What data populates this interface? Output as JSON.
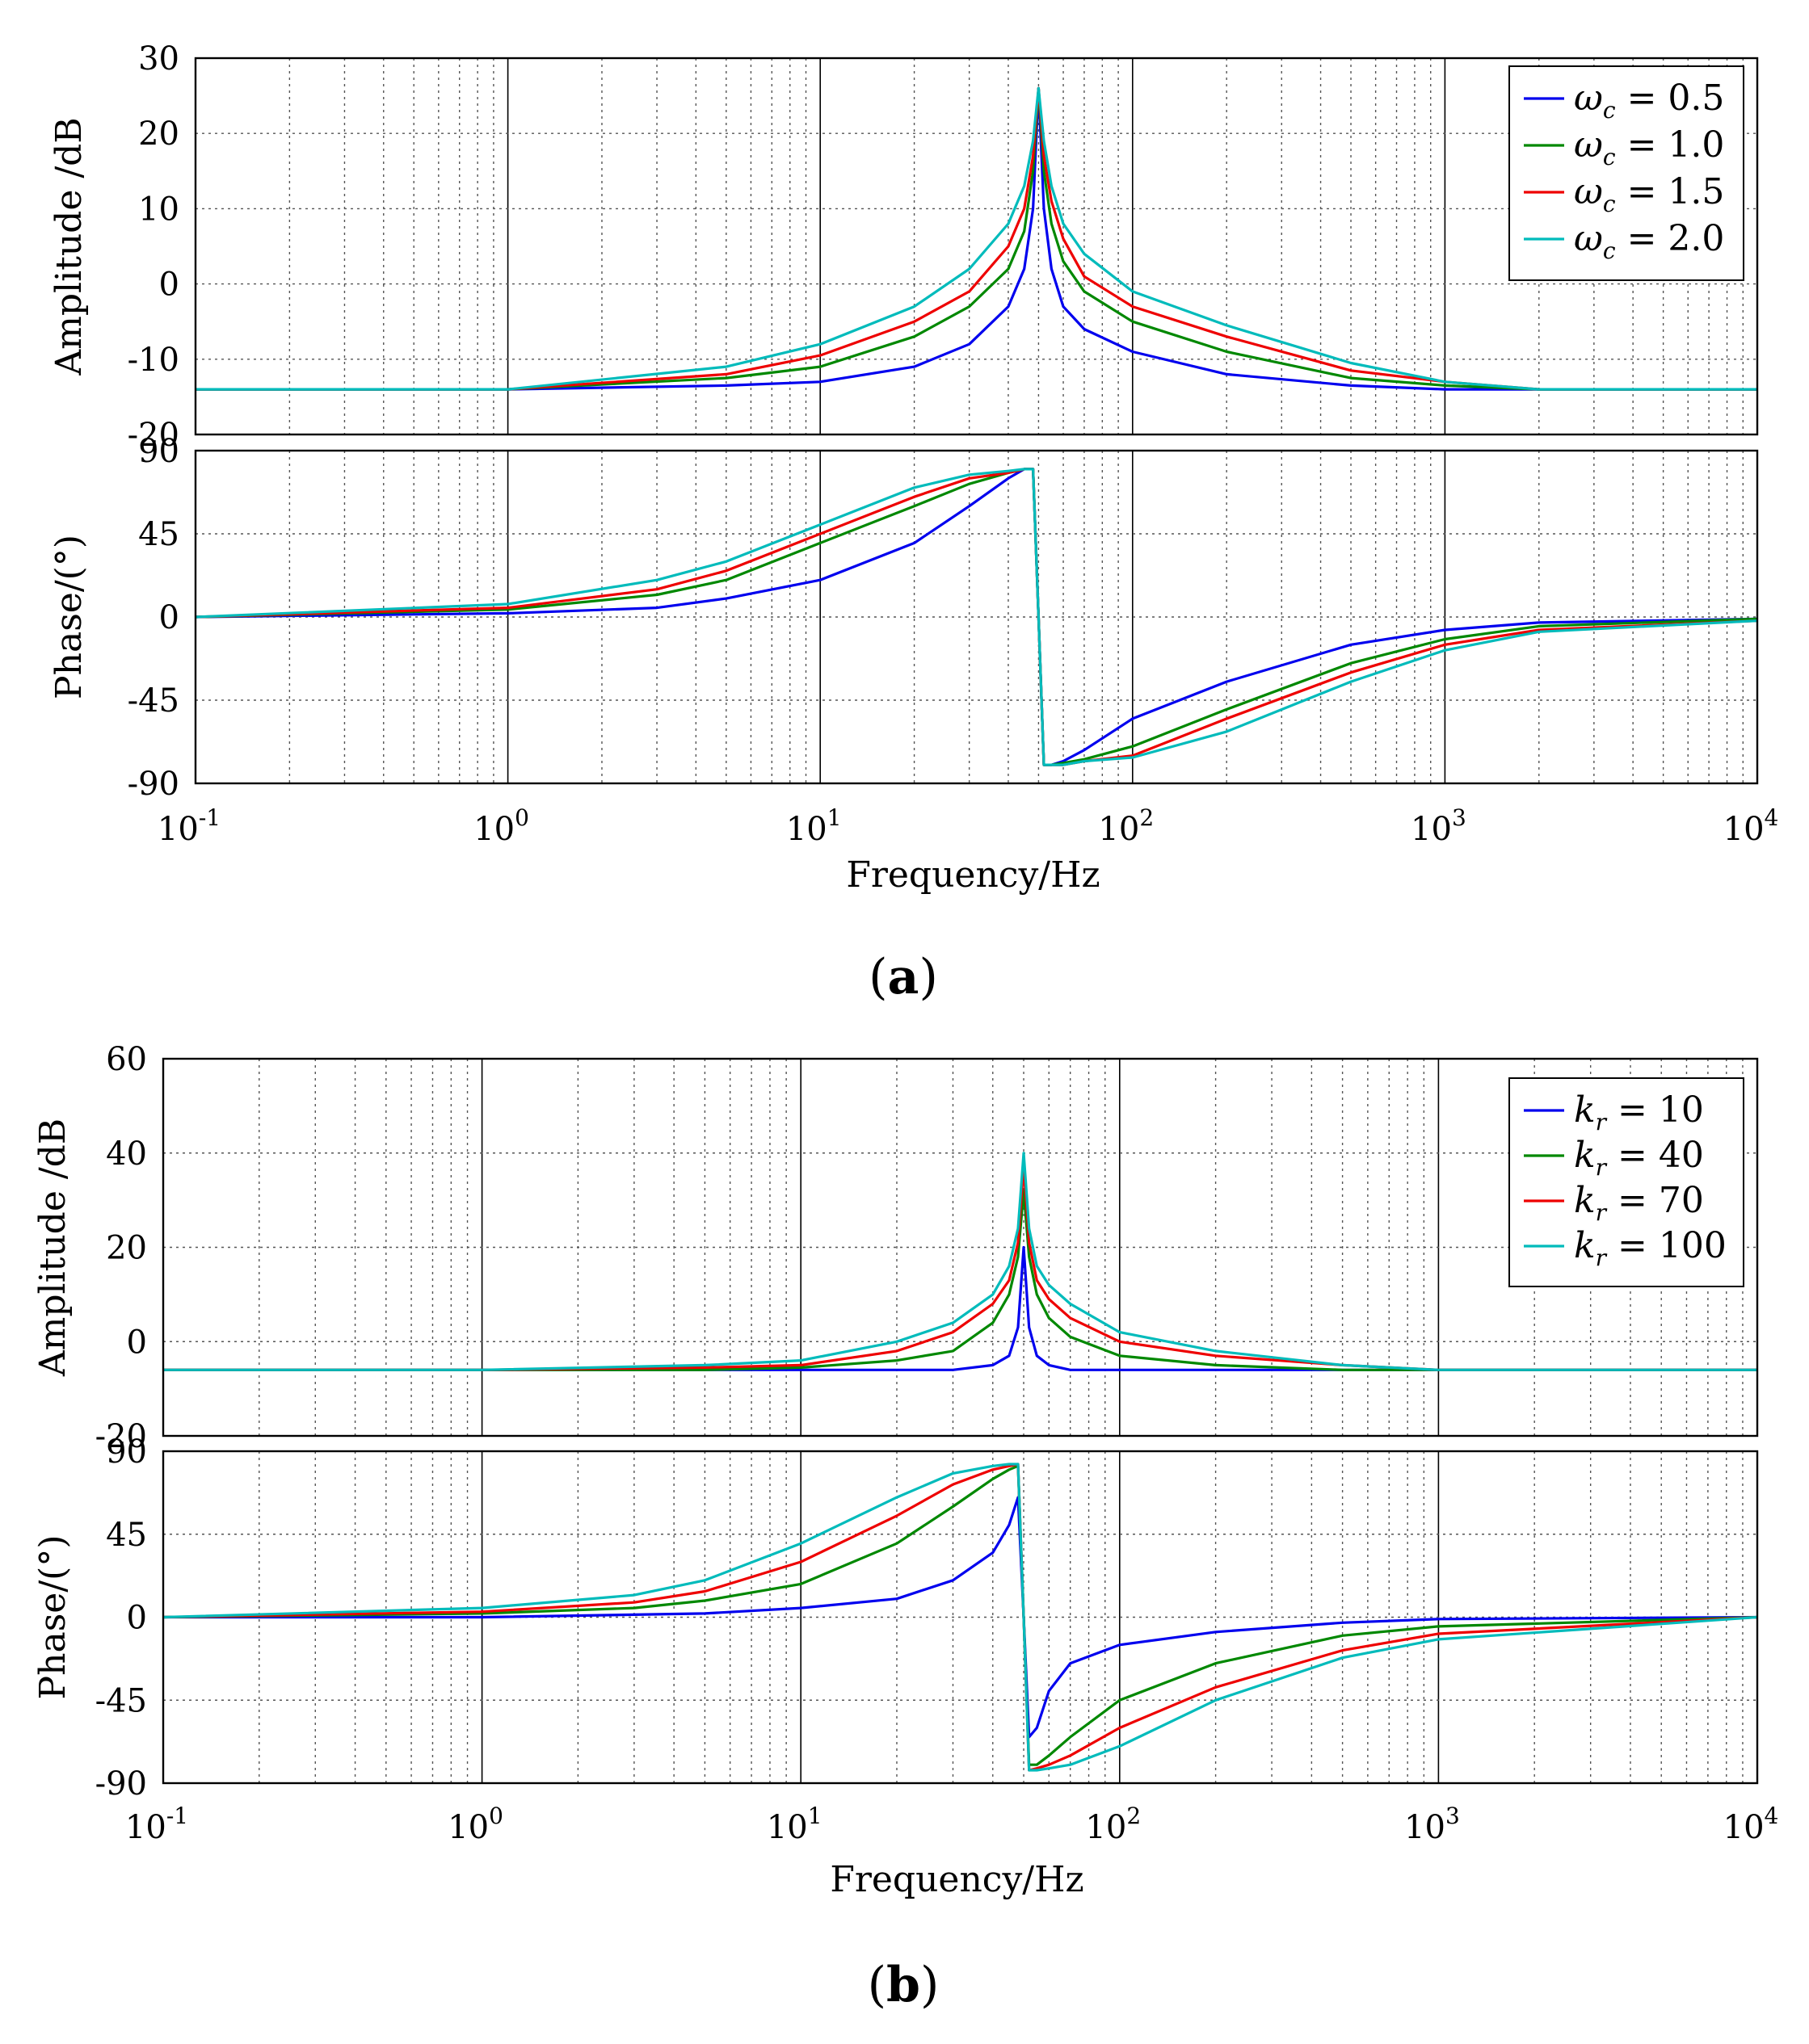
{
  "figure": {
    "panels": [
      {
        "caption_letter": "a",
        "legend_symbol": "ω",
        "legend_subscript": "c",
        "legend_values": [
          "0.5",
          "1.0",
          "1.5",
          "2.0"
        ],
        "xlabel": "Frequency/Hz"
      },
      {
        "caption_letter": "b",
        "legend_symbol": "k",
        "legend_subscript": "r",
        "legend_values": [
          "10",
          "40",
          "70",
          "100"
        ],
        "xlabel": "Frequency/Hz"
      }
    ]
  },
  "chart_data": [
    {
      "type": "line",
      "title": "",
      "panel": "a",
      "xlabel": "Frequency/Hz",
      "x_scale": "log",
      "xlim": [
        0.1,
        10000
      ],
      "x_ticks": [
        {
          "base": "10",
          "exp": "-1"
        },
        {
          "base": "10",
          "exp": "0"
        },
        {
          "base": "10",
          "exp": "1"
        },
        {
          "base": "10",
          "exp": "2"
        },
        {
          "base": "10",
          "exp": "3"
        },
        {
          "base": "10",
          "exp": "4"
        }
      ],
      "subplots": [
        {
          "ylabel": "Amplitude /dB",
          "ylim": [
            -20,
            30
          ],
          "yticks": [
            "30",
            "20",
            "10",
            "0",
            "-10",
            "-20"
          ],
          "grid": true,
          "legend": "top-right",
          "series": [
            {
              "name": "ωc = 0.5",
              "color": "#0000ee",
              "x": [
                0.1,
                1,
                5,
                10,
                20,
                30,
                40,
                45,
                48,
                50,
                52,
                55,
                60,
                70,
                100,
                200,
                500,
                1000,
                2000,
                10000
              ],
              "y": [
                -14,
                -14,
                -13.5,
                -13,
                -11,
                -8,
                -3,
                2,
                10,
                26,
                10,
                2,
                -3,
                -6,
                -9,
                -12,
                -13.5,
                -14,
                -14,
                -14
              ]
            },
            {
              "name": "ωc = 1.0",
              "color": "#008800",
              "x": [
                0.1,
                1,
                5,
                10,
                20,
                30,
                40,
                45,
                48,
                50,
                52,
                55,
                60,
                70,
                100,
                200,
                500,
                1000,
                2000,
                10000
              ],
              "y": [
                -14,
                -14,
                -12.5,
                -11,
                -7,
                -3,
                2,
                7,
                15,
                26,
                15,
                8,
                3,
                -1,
                -5,
                -9,
                -12.5,
                -13.5,
                -14,
                -14
              ]
            },
            {
              "name": "ωc = 1.5",
              "color": "#ee0000",
              "x": [
                0.1,
                1,
                5,
                10,
                20,
                30,
                40,
                45,
                48,
                50,
                52,
                55,
                60,
                70,
                100,
                200,
                500,
                1000,
                2000,
                10000
              ],
              "y": [
                -14,
                -14,
                -12,
                -9.5,
                -5,
                -1,
                5,
                10,
                17,
                26,
                17,
                11,
                6,
                1,
                -3,
                -7,
                -11.5,
                -13,
                -14,
                -14
              ]
            },
            {
              "name": "ωc = 2.0",
              "color": "#00bbbb",
              "x": [
                0.1,
                1,
                5,
                10,
                20,
                30,
                40,
                45,
                48,
                50,
                52,
                55,
                60,
                70,
                100,
                200,
                500,
                1000,
                2000,
                10000
              ],
              "y": [
                -14,
                -14,
                -11,
                -8,
                -3,
                2,
                8,
                13,
                19,
                26,
                19,
                13,
                8,
                4,
                -1,
                -5.5,
                -10.5,
                -13,
                -14,
                -14
              ]
            }
          ]
        },
        {
          "ylabel": "Phase/(°)",
          "ylim": [
            -90,
            90
          ],
          "yticks": [
            "90",
            "45",
            "0",
            "-45",
            "-90"
          ],
          "grid": true,
          "series": [
            {
              "name": "ωc = 0.5",
              "color": "#0000ee",
              "x": [
                0.1,
                1,
                3,
                5,
                10,
                20,
                30,
                40,
                45,
                48,
                50,
                52,
                55,
                60,
                70,
                100,
                200,
                500,
                1000,
                2000,
                10000
              ],
              "y": [
                0,
                2,
                5,
                10,
                20,
                40,
                60,
                75,
                80,
                80,
                0,
                -80,
                -80,
                -78,
                -72,
                -55,
                -35,
                -15,
                -7,
                -3,
                -1
              ]
            },
            {
              "name": "ωc = 1.0",
              "color": "#008800",
              "x": [
                0.1,
                1,
                3,
                5,
                10,
                20,
                30,
                40,
                45,
                48,
                50,
                52,
                55,
                60,
                70,
                100,
                200,
                500,
                1000,
                2000,
                10000
              ],
              "y": [
                0,
                4,
                12,
                20,
                40,
                60,
                72,
                78,
                80,
                80,
                0,
                -80,
                -80,
                -79,
                -77,
                -70,
                -50,
                -25,
                -12,
                -5,
                -1
              ]
            },
            {
              "name": "ωc = 1.5",
              "color": "#ee0000",
              "x": [
                0.1,
                1,
                3,
                5,
                10,
                20,
                30,
                40,
                45,
                48,
                50,
                52,
                55,
                60,
                70,
                100,
                200,
                500,
                1000,
                2000,
                10000
              ],
              "y": [
                0,
                5,
                15,
                25,
                45,
                65,
                75,
                78,
                80,
                80,
                0,
                -80,
                -80,
                -80,
                -78,
                -75,
                -55,
                -30,
                -15,
                -7,
                -2
              ]
            },
            {
              "name": "ωc = 2.0",
              "color": "#00bbbb",
              "x": [
                0.1,
                1,
                3,
                5,
                10,
                20,
                30,
                40,
                45,
                48,
                50,
                52,
                55,
                60,
                70,
                100,
                200,
                500,
                1000,
                2000,
                10000
              ],
              "y": [
                0,
                7,
                20,
                30,
                50,
                70,
                77,
                79,
                80,
                80,
                0,
                -80,
                -80,
                -80,
                -78,
                -76,
                -62,
                -35,
                -18,
                -8,
                -2
              ]
            }
          ]
        }
      ]
    },
    {
      "type": "line",
      "title": "",
      "panel": "b",
      "xlabel": "Frequency/Hz",
      "x_scale": "log",
      "xlim": [
        0.1,
        10000
      ],
      "x_ticks": [
        {
          "base": "10",
          "exp": "-1"
        },
        {
          "base": "10",
          "exp": "0"
        },
        {
          "base": "10",
          "exp": "1"
        },
        {
          "base": "10",
          "exp": "2"
        },
        {
          "base": "10",
          "exp": "3"
        },
        {
          "base": "10",
          "exp": "4"
        }
      ],
      "subplots": [
        {
          "ylabel": "Amplitude /dB",
          "ylim": [
            -20,
            60
          ],
          "yticks": [
            "60",
            "40",
            "20",
            "0",
            "-20"
          ],
          "grid": true,
          "legend": "top-right",
          "series": [
            {
              "name": "kr = 10",
              "color": "#0000ee",
              "x": [
                0.1,
                1,
                10,
                30,
                40,
                45,
                48,
                50,
                52,
                55,
                60,
                70,
                100,
                10000
              ],
              "y": [
                -6,
                -6,
                -6,
                -6,
                -5,
                -3,
                3,
                20,
                3,
                -3,
                -5,
                -6,
                -6,
                -6
              ]
            },
            {
              "name": "kr = 40",
              "color": "#008800",
              "x": [
                0.1,
                1,
                5,
                10,
                20,
                30,
                40,
                45,
                48,
                50,
                52,
                55,
                60,
                70,
                100,
                200,
                500,
                1000,
                10000
              ],
              "y": [
                -6,
                -6,
                -6,
                -5.5,
                -4,
                -2,
                4,
                10,
                18,
                32,
                18,
                10,
                5,
                1,
                -3,
                -5,
                -6,
                -6,
                -6
              ]
            },
            {
              "name": "kr = 70",
              "color": "#ee0000",
              "x": [
                0.1,
                1,
                5,
                10,
                20,
                30,
                40,
                45,
                48,
                50,
                52,
                55,
                60,
                70,
                100,
                200,
                500,
                1000,
                10000
              ],
              "y": [
                -6,
                -6,
                -5.5,
                -5,
                -2,
                2,
                8,
                13,
                21,
                37,
                21,
                13,
                9,
                5,
                0,
                -3,
                -5,
                -6,
                -6
              ]
            },
            {
              "name": "kr = 100",
              "color": "#00bbbb",
              "x": [
                0.1,
                1,
                5,
                10,
                20,
                30,
                40,
                45,
                48,
                50,
                52,
                55,
                60,
                70,
                100,
                200,
                500,
                1000,
                10000
              ],
              "y": [
                -6,
                -6,
                -5,
                -4,
                0,
                4,
                10,
                16,
                24,
                40,
                24,
                16,
                12,
                8,
                2,
                -2,
                -5,
                -6,
                -6
              ]
            }
          ]
        },
        {
          "ylabel": "Phase/(°)",
          "ylim": [
            -90,
            90
          ],
          "yticks": [
            "90",
            "45",
            "0",
            "-45",
            "-90"
          ],
          "grid": true,
          "series": [
            {
              "name": "kr = 10",
              "color": "#0000ee",
              "x": [
                0.1,
                1,
                5,
                10,
                20,
                30,
                40,
                45,
                48,
                50,
                52,
                55,
                60,
                70,
                100,
                200,
                500,
                1000,
                10000
              ],
              "y": [
                0,
                0,
                2,
                5,
                10,
                20,
                35,
                50,
                65,
                0,
                -65,
                -60,
                -40,
                -25,
                -15,
                -8,
                -3,
                -1,
                0
              ]
            },
            {
              "name": "kr = 40",
              "color": "#008800",
              "x": [
                0.1,
                1,
                3,
                5,
                10,
                20,
                30,
                40,
                45,
                48,
                50,
                52,
                55,
                60,
                70,
                100,
                200,
                500,
                1000,
                10000
              ],
              "y": [
                0,
                2,
                5,
                9,
                18,
                40,
                60,
                75,
                80,
                82,
                0,
                -80,
                -80,
                -75,
                -65,
                -45,
                -25,
                -10,
                -5,
                0
              ]
            },
            {
              "name": "kr = 70",
              "color": "#ee0000",
              "x": [
                0.1,
                1,
                3,
                5,
                10,
                20,
                30,
                40,
                45,
                48,
                50,
                52,
                55,
                60,
                70,
                100,
                200,
                500,
                1000,
                10000
              ],
              "y": [
                0,
                3,
                8,
                14,
                30,
                55,
                72,
                80,
                82,
                83,
                0,
                -83,
                -82,
                -80,
                -75,
                -60,
                -38,
                -18,
                -9,
                0
              ]
            },
            {
              "name": "kr = 100",
              "color": "#00bbbb",
              "x": [
                0.1,
                1,
                3,
                5,
                10,
                20,
                30,
                40,
                45,
                48,
                50,
                52,
                55,
                60,
                70,
                100,
                200,
                500,
                1000,
                10000
              ],
              "y": [
                0,
                5,
                12,
                20,
                40,
                65,
                78,
                82,
                83,
                83,
                0,
                -83,
                -83,
                -82,
                -80,
                -70,
                -45,
                -22,
                -12,
                0
              ]
            }
          ]
        }
      ]
    }
  ]
}
